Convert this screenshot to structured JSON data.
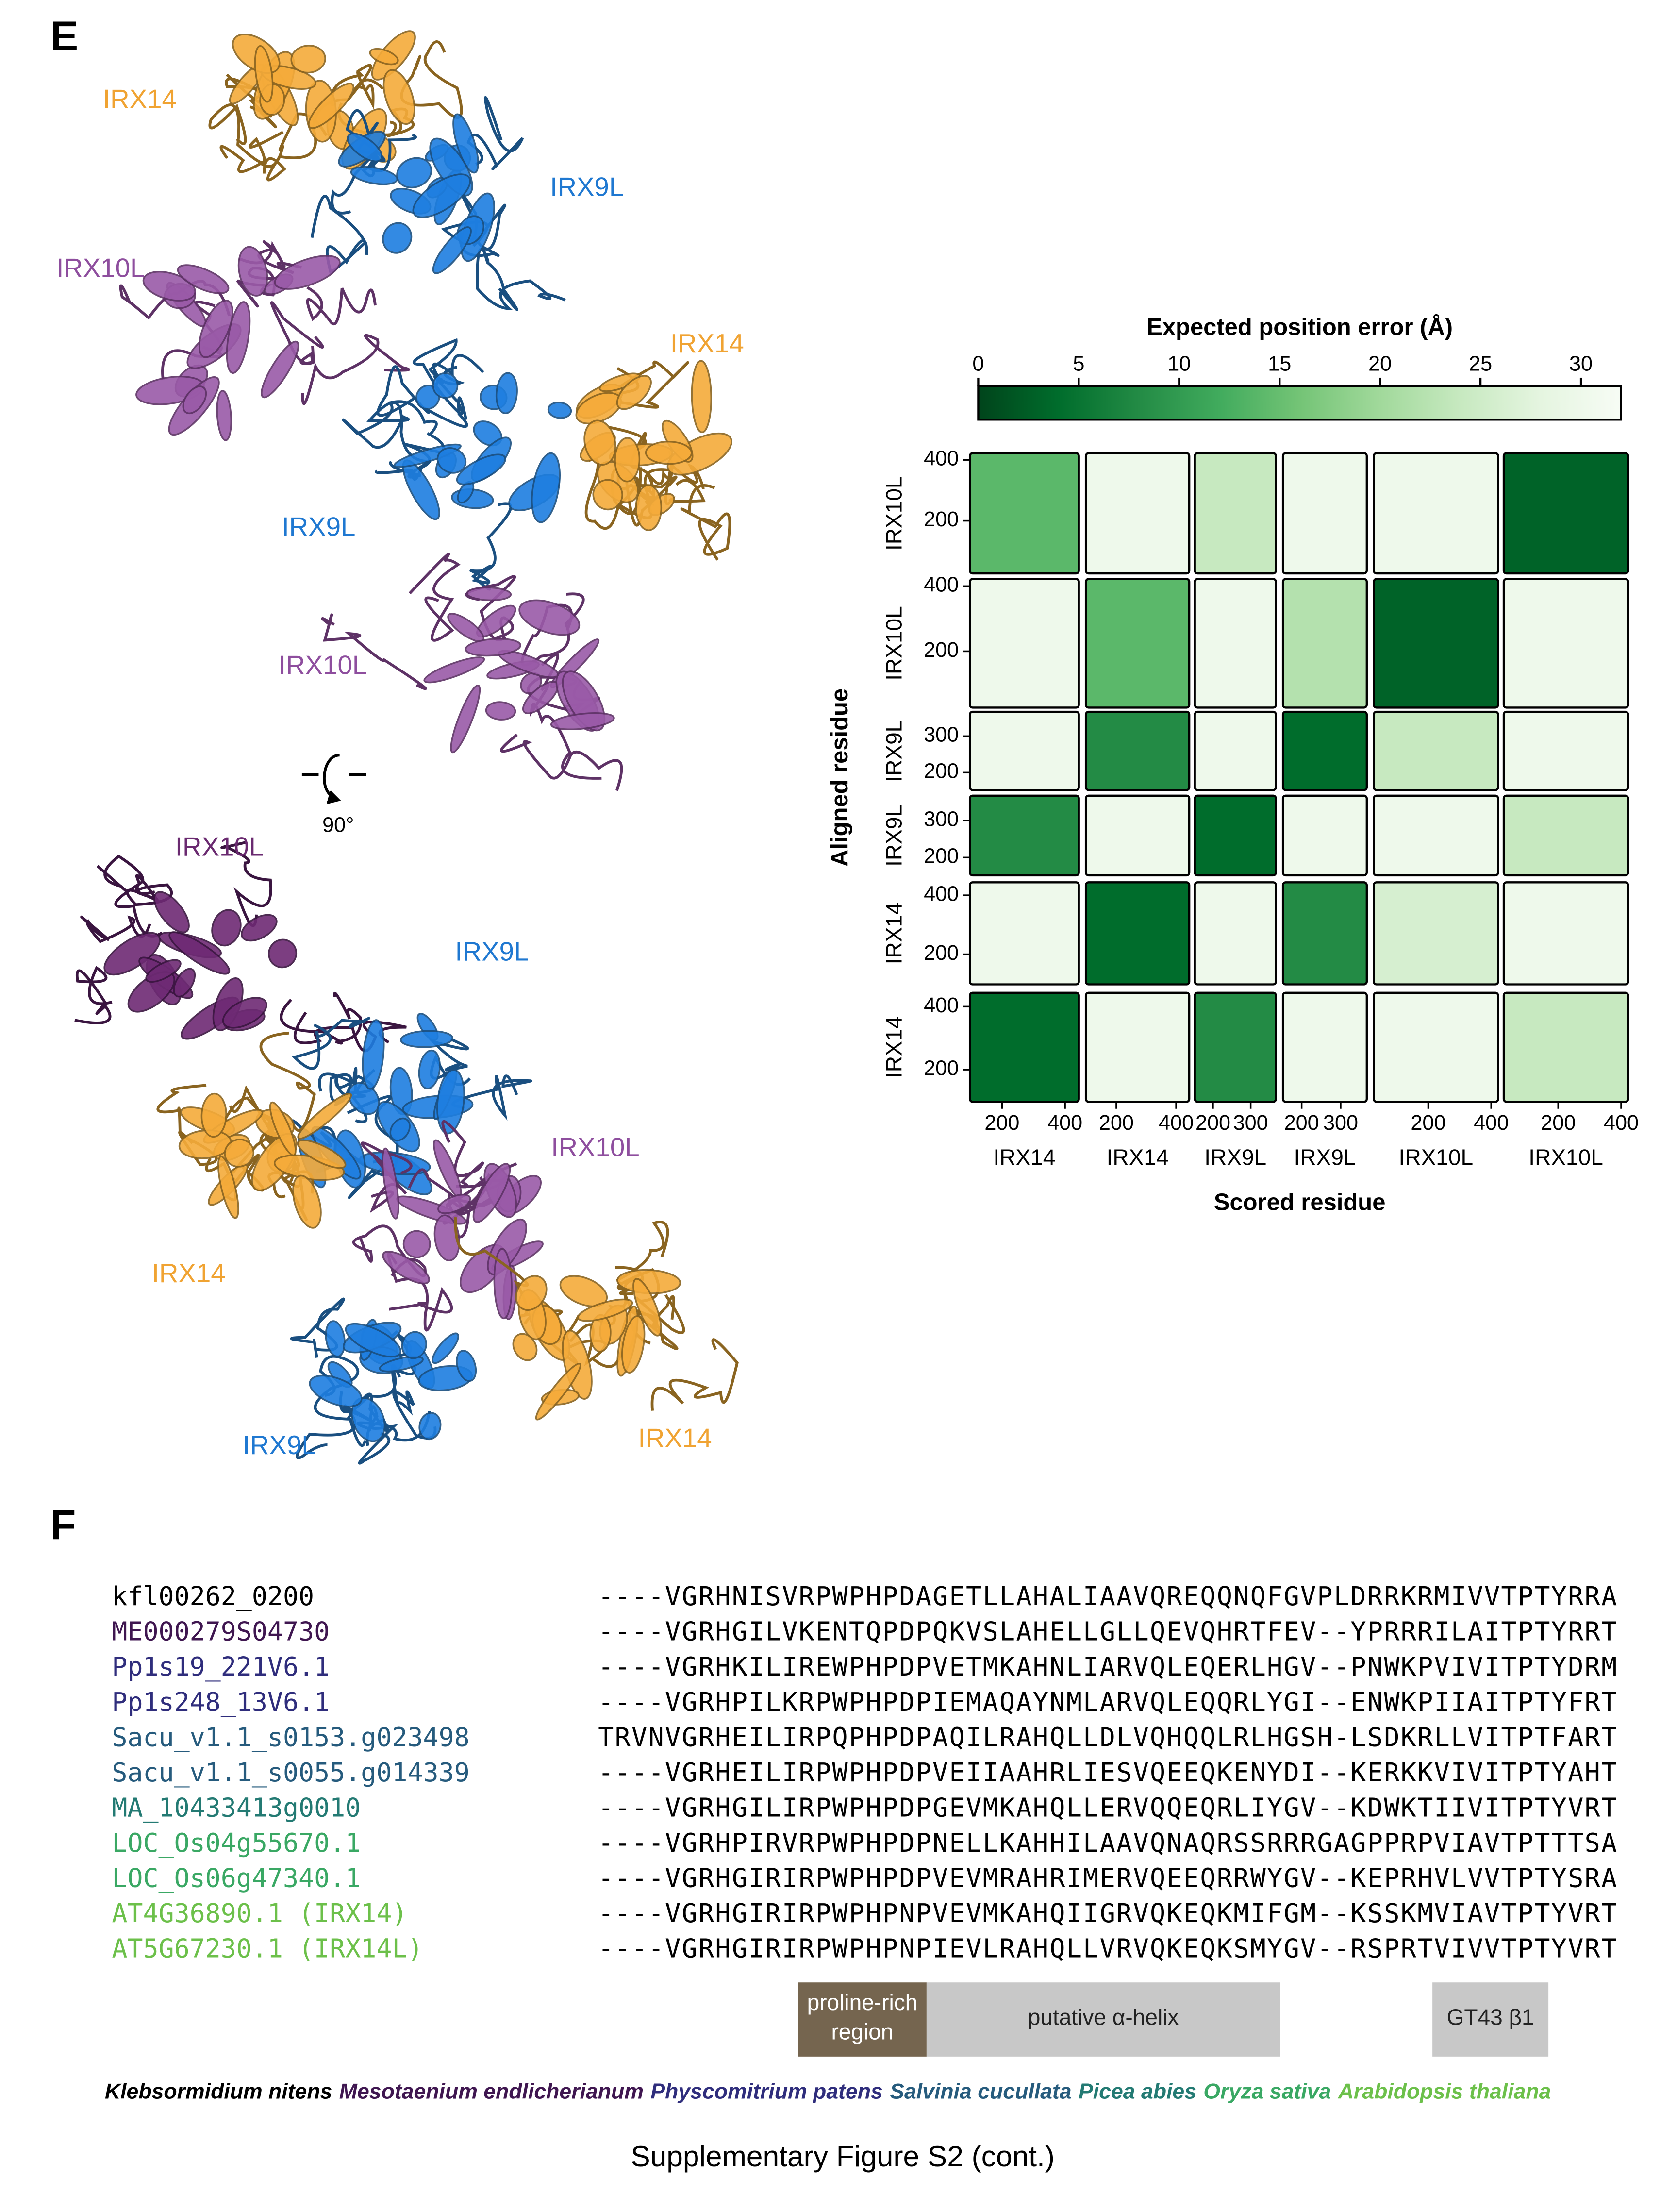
{
  "panel_e": {
    "letter": "E",
    "structure_labels": [
      "IRX14",
      "IRX9L",
      "IRX10L",
      "IRX14",
      "IRX9L",
      "IRX10L",
      "IRX10L",
      "IRX9L",
      "IRX10L",
      "IRX14",
      "IRX14",
      "IRX9L"
    ],
    "rotation": "90°"
  },
  "pae": {
    "title": "Expected position error (Å)",
    "colorbar_lim": [
      0,
      32
    ],
    "colorbar_ticks": [
      0,
      5,
      10,
      15,
      20,
      25,
      30
    ],
    "chains": [
      {
        "name": "IRX14",
        "lim": [
          98,
          444
        ],
        "ticks": [
          200,
          400
        ]
      },
      {
        "name": "IRX9L",
        "lim": [
          152,
          367
        ],
        "ticks": [
          200,
          300
        ]
      },
      {
        "name": "IRX10L",
        "lim": [
          27,
          422
        ],
        "ticks": [
          200,
          400
        ]
      }
    ],
    "row_labels": [
      "IRX10L",
      "IRX10L",
      "IRX9L",
      "IRX9L",
      "IRX14",
      "IRX14"
    ],
    "column_labels": [
      "IRX14",
      "IRX14",
      "IRX9L",
      "IRX9L",
      "IRX10L",
      "IRX10L"
    ],
    "matrix": [
      [
        14,
        30,
        24,
        30,
        30,
        3
      ],
      [
        30,
        14,
        30,
        22,
        3,
        30
      ],
      [
        30,
        8,
        30,
        4,
        24,
        30
      ],
      [
        8,
        30,
        4,
        30,
        30,
        24
      ],
      [
        30,
        4,
        30,
        8,
        26,
        30
      ],
      [
        4,
        30,
        8,
        30,
        30,
        24
      ]
    ],
    "x_label": "Scored residue",
    "y_label": "Aligned residue"
  },
  "panel_f": {
    "letter": "F",
    "alignment": [
      {
        "name": "kfl00262_0200",
        "color": "#000000",
        "sequence": "----VGRHNISVRPWPHPDAGETLLAHALIAAVQREQQNQFGVPLDRRKRMIVVTPTYRRA"
      },
      {
        "name": "ME000279S04730",
        "color": "#3f1650",
        "sequence": "----VGRHGILVKENTQPDPQKVSLAHELLGLLQEVQHRTFEV--YPRRRILAITPTYRRT"
      },
      {
        "name": "Pp1s19_221V6.1",
        "color": "#2f2d7c",
        "sequence": "----VGRHKILIREWPHPDPVETMKAHNLIARVQLEQERLHGV--PNWKPVIVITPTYDRM"
      },
      {
        "name": "Pp1s248_13V6.1",
        "color": "#2f2d7c",
        "sequence": "----VGRHPILKRPWPHPDPIEMAQAYNMLARVQLEQQRLYGI--ENWKPIIAITPTYFRT"
      },
      {
        "name": "Sacu_v1.1_s0153.g023498",
        "color": "#265b7d",
        "sequence": "TRVNVGRHEILIRPQPHPDPAQILRAHQLLDLVQHQQLRLHGSH-LSDKRLLVITPTFART"
      },
      {
        "name": "Sacu_v1.1_s0055.g014339",
        "color": "#265b7d",
        "sequence": "----VGRHEILIRPWPHPDPVEIIAAHRLIESVQEEQKENYDI--KERKKVIVITPTYAHT"
      },
      {
        "name": "MA_10433413g0010",
        "color": "#237a73",
        "sequence": "----VGRHGILIRPWPHPDPGEVMKAHQLLERVQQEQRLIYGV--KDWKTIIVITPTYVRT"
      },
      {
        "name": "LOC_Os04g55670.1",
        "color": "#3aa864",
        "sequence": "----VGRHPIRVRPWPHPDPNELLKAHHILAAVQNAQRSSRRRGAGPPRPVIAVTPTTTSA"
      },
      {
        "name": "LOC_Os06g47340.1",
        "color": "#3aa864",
        "sequence": "----VGRHGIRIRPWPHPDPVEVMRAHRIMERVQEEQRRWYGV--KEPRHVLVVTPTYSRA"
      },
      {
        "name": "AT4G36890.1 (IRX14)",
        "color": "#6cc04a",
        "sequence": "----VGRHGIRIRPWPHPNPVEVMKAHQIIGRVQKEQKMIFGM--KSSKMVIAVTPTYVRT"
      },
      {
        "name": "AT5G67230.1 (IRX14L)",
        "color": "#6cc04a",
        "sequence": "----VGRHGIRIRPWPHPNPIEVLRAHQLLVRVQKEQKSMYGV--RSPRTVIVVTPTYVRT"
      }
    ],
    "regions": [
      {
        "lines": [
          "proline-rich",
          "region"
        ],
        "color": "#75654f"
      },
      {
        "lines": [
          "putative α-helix"
        ],
        "color": "#c8c8c8"
      },
      {
        "lines": [
          "GT43 β1"
        ],
        "color": "#c8c8c8"
      }
    ],
    "species": [
      {
        "name": "Klebsormidium nitens",
        "color": "#000000"
      },
      {
        "name": "Mesotaenium endlicherianum",
        "color": "#3f1650"
      },
      {
        "name": "Physcomitrium patens",
        "color": "#2f2d7c"
      },
      {
        "name": "Salvinia cucullata",
        "color": "#265b7d"
      },
      {
        "name": "Picea abies",
        "color": "#237a73"
      },
      {
        "name": "Oryza sativa",
        "color": "#3aa864"
      },
      {
        "name": "Arabidopsis thaliana",
        "color": "#6cc04a"
      }
    ]
  },
  "caption": "Supplementary Figure S2 (cont.)"
}
